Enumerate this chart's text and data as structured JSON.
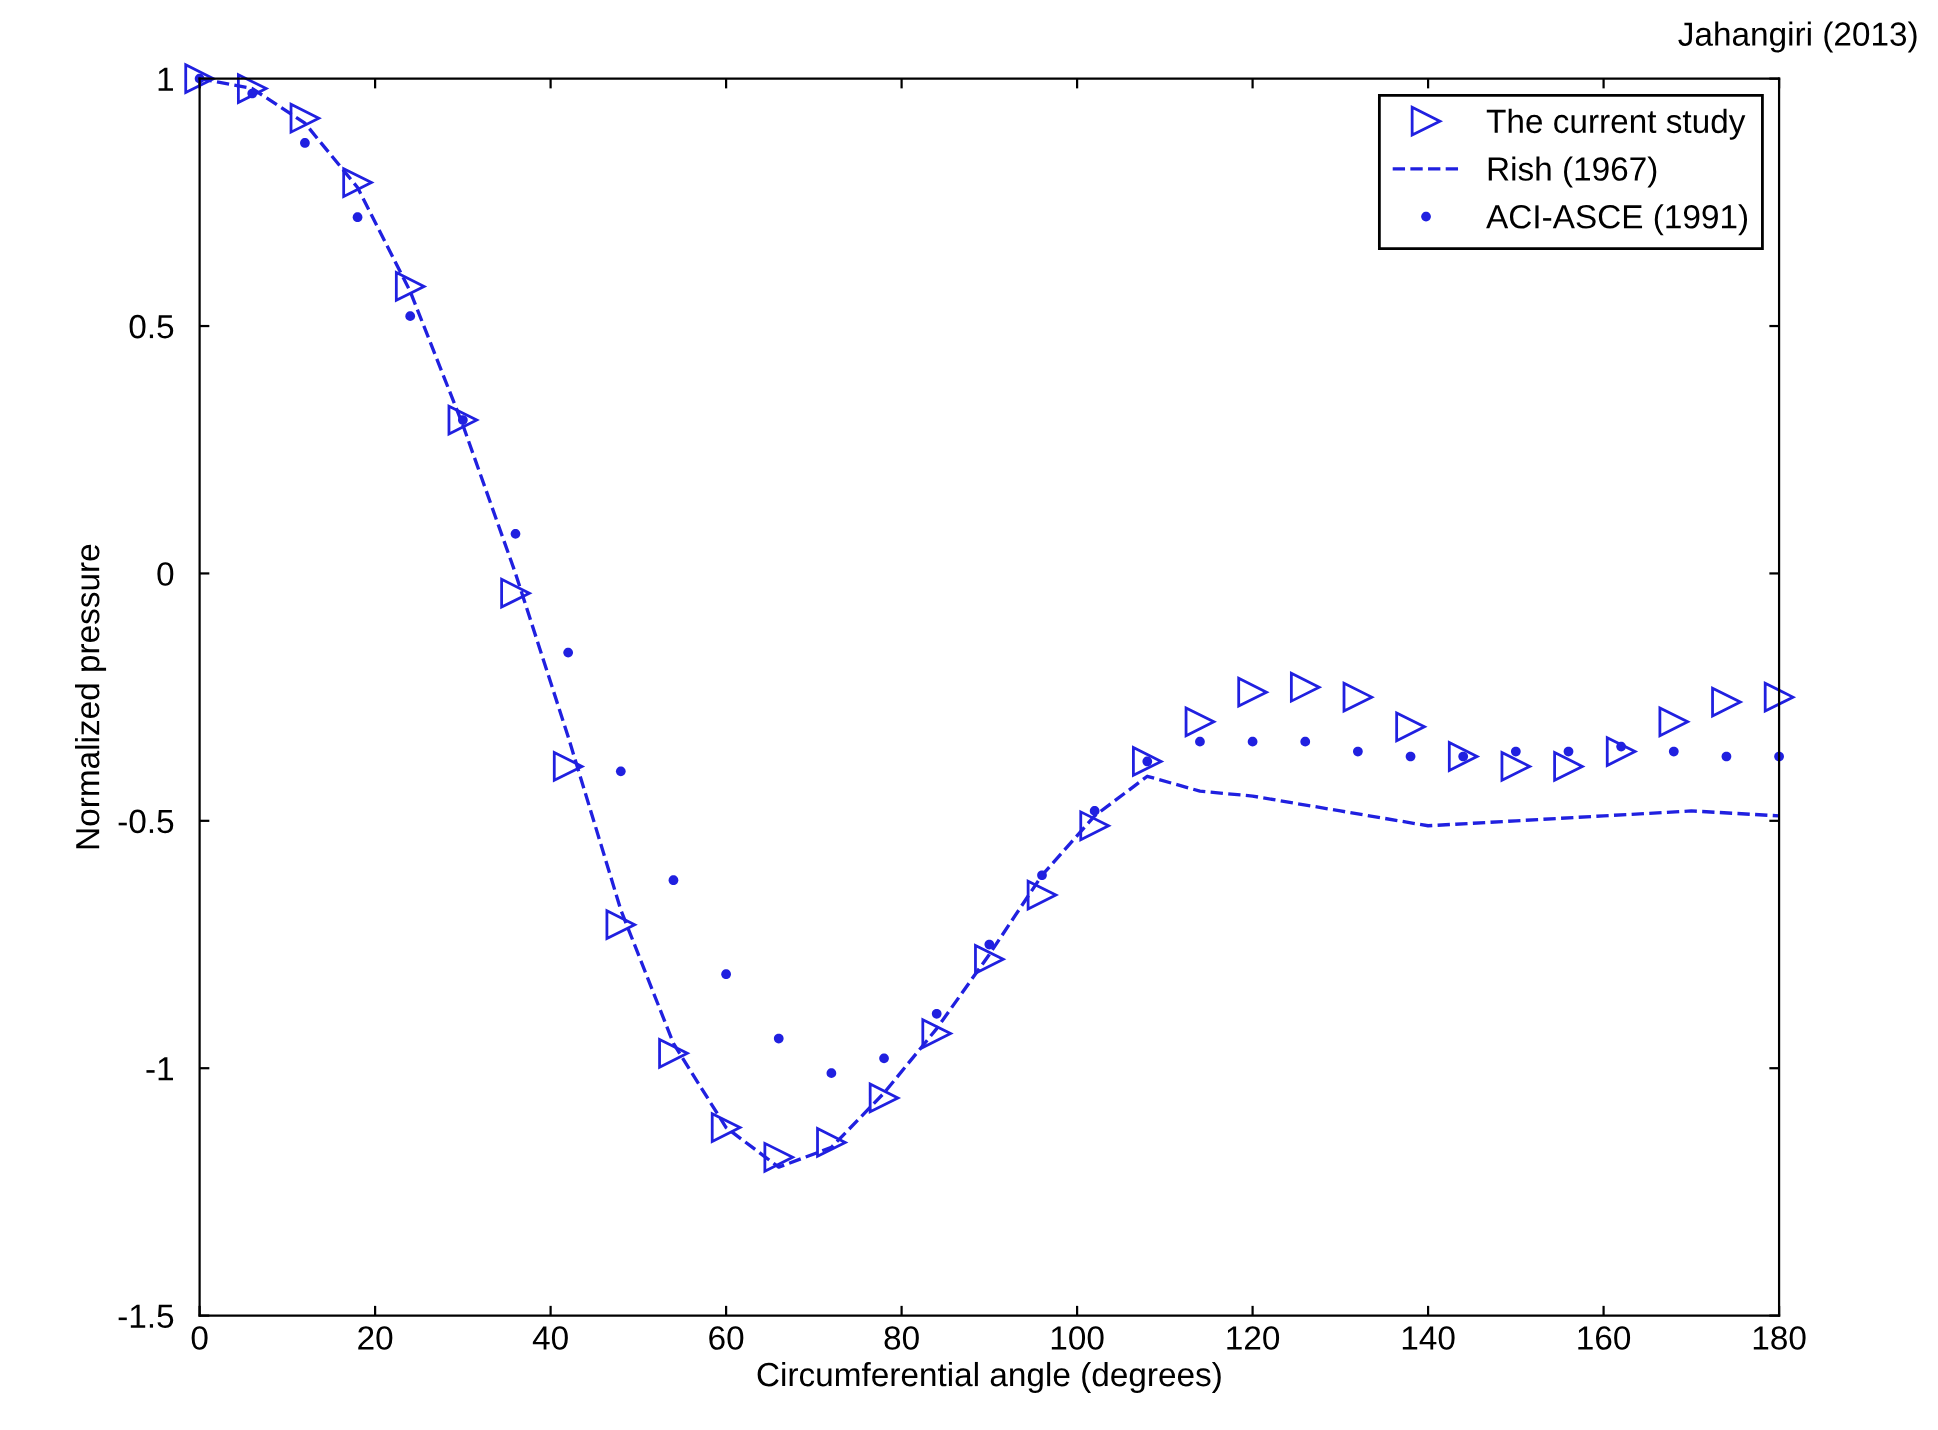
{
  "chart_data": {
    "type": "line",
    "xlabel": "Circumferential angle (degrees)",
    "ylabel": "Normalized pressure",
    "annotations": [
      "Jahangiri (2013)"
    ],
    "xlim": [
      0,
      180
    ],
    "ylim": [
      -1.5,
      1
    ],
    "xticks": [
      0,
      20,
      40,
      60,
      80,
      100,
      120,
      140,
      160,
      180
    ],
    "yticks": [
      -1.5,
      -1,
      -0.5,
      0,
      0.5,
      1
    ],
    "grid": false,
    "legend": "top right",
    "series": [
      {
        "name": "The current study",
        "type": "scatter",
        "marker": "triangle",
        "color": "#2020e0",
        "x": [
          0,
          6,
          12,
          18,
          24,
          30,
          36,
          42,
          48,
          54,
          60,
          66,
          72,
          78,
          84,
          90,
          96,
          102,
          108,
          114,
          120,
          126,
          132,
          138,
          144,
          150,
          156,
          162,
          168,
          174,
          180
        ],
        "values": [
          1.0,
          0.98,
          0.92,
          0.79,
          0.58,
          0.31,
          -0.04,
          -0.39,
          -0.71,
          -0.97,
          -1.12,
          -1.18,
          -1.15,
          -1.06,
          -0.93,
          -0.78,
          -0.65,
          -0.51,
          -0.38,
          -0.3,
          -0.24,
          -0.23,
          -0.25,
          -0.31,
          -0.37,
          -0.39,
          -0.39,
          -0.36,
          -0.3,
          -0.26,
          -0.25
        ]
      },
      {
        "name": "Rish (1967)",
        "marker": "none",
        "line_style": "dashed",
        "color": "#2020e0",
        "x": [
          0,
          6,
          12,
          18,
          24,
          30,
          36,
          42,
          48,
          54,
          60,
          66,
          72,
          78,
          84,
          90,
          96,
          102,
          108,
          114,
          120,
          130,
          140,
          150,
          160,
          170,
          180
        ],
        "values": [
          1.0,
          0.98,
          0.91,
          0.78,
          0.57,
          0.3,
          0.0,
          -0.33,
          -0.68,
          -0.95,
          -1.12,
          -1.2,
          -1.16,
          -1.05,
          -0.92,
          -0.77,
          -0.61,
          -0.49,
          -0.41,
          -0.44,
          -0.45,
          -0.48,
          -0.51,
          -0.5,
          -0.49,
          -0.48,
          -0.49
        ]
      },
      {
        "name": "ACI-ASCE (1991)",
        "type": "scatter",
        "marker": "circle",
        "color": "#2020e0",
        "x": [
          0,
          6,
          12,
          18,
          24,
          30,
          36,
          42,
          48,
          54,
          60,
          66,
          72,
          78,
          84,
          90,
          96,
          102,
          108,
          114,
          120,
          126,
          132,
          138,
          144,
          150,
          156,
          162,
          168,
          174,
          180
        ],
        "values": [
          1.0,
          0.97,
          0.87,
          0.72,
          0.52,
          0.31,
          0.08,
          -0.16,
          -0.4,
          -0.62,
          -0.81,
          -0.94,
          -1.01,
          -0.98,
          -0.89,
          -0.75,
          -0.61,
          -0.48,
          -0.38,
          -0.34,
          -0.34,
          -0.34,
          -0.36,
          -0.37,
          -0.37,
          -0.36,
          -0.36,
          -0.35,
          -0.36,
          -0.37,
          -0.37
        ]
      }
    ]
  }
}
